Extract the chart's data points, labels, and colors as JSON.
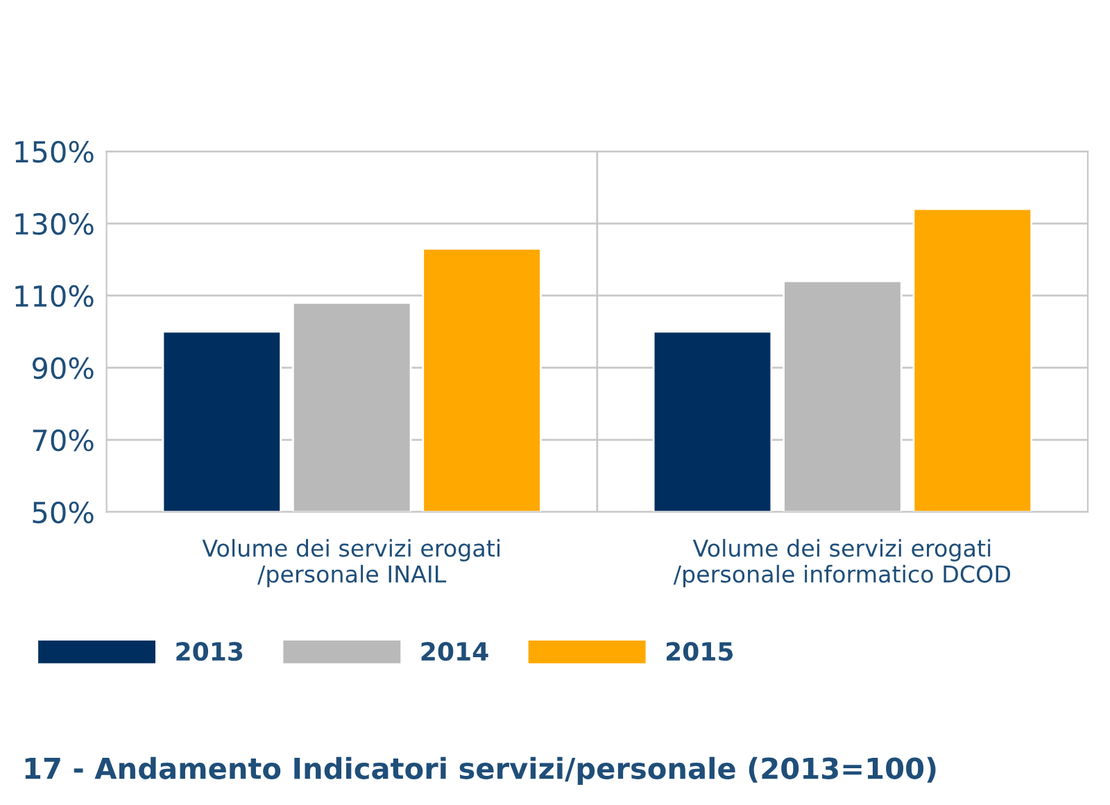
{
  "chart_data": {
    "type": "bar",
    "title": "17 - Andamento Indicatori servizi/personale (2013=100)",
    "categories": [
      "Volume dei servizi erogati\n/personale INAIL",
      "Volume dei servizi erogati\n/personale informatico DCOD"
    ],
    "series": [
      {
        "name": "2013",
        "color": "#002f5f",
        "values": [
          100,
          100
        ]
      },
      {
        "name": "2014",
        "color": "#b9b9b9",
        "values": [
          108,
          114
        ]
      },
      {
        "name": "2015",
        "color": "#fea800",
        "values": [
          123,
          134
        ]
      }
    ],
    "ylim": [
      50,
      150
    ],
    "yticks": [
      {
        "value": 50,
        "label": "50%"
      },
      {
        "value": 70,
        "label": "70%"
      },
      {
        "value": 90,
        "label": "90%"
      },
      {
        "value": 110,
        "label": "110%"
      },
      {
        "value": 130,
        "label": "130%"
      },
      {
        "value": 150,
        "label": "150%"
      }
    ],
    "grid": true,
    "legend": "bottom"
  }
}
